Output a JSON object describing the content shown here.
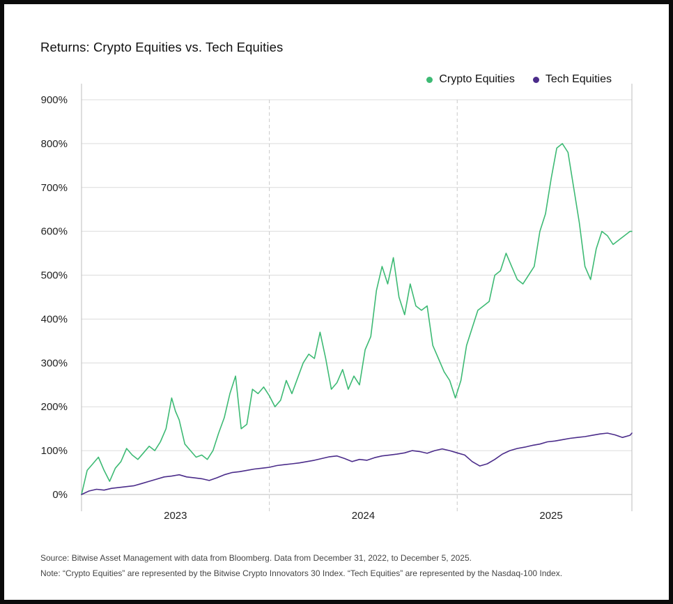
{
  "title": "Returns: Crypto Equities vs. Tech Equities",
  "legend": {
    "crypto_label": "Crypto Equities",
    "tech_label": "Tech Equities"
  },
  "colors": {
    "crypto": "#3dba74",
    "tech": "#4b2c8a",
    "grid": "#dcdcdc",
    "year_divider": "#c9c9c9"
  },
  "chart_data": {
    "type": "line",
    "title": "Returns: Crypto Equities vs. Tech Equities",
    "xlabel": "",
    "ylabel": "",
    "x_unit": "years since Dec 31, 2022",
    "xlim": [
      0,
      2.93
    ],
    "ylim": [
      0,
      900
    ],
    "y_ticks": [
      0,
      100,
      200,
      300,
      400,
      500,
      600,
      700,
      800,
      900
    ],
    "y_tick_labels": [
      "0%",
      "100%",
      "200%",
      "300%",
      "400%",
      "500%",
      "600%",
      "700%",
      "800%",
      "900%"
    ],
    "x_year_labels": [
      "2023",
      "2024",
      "2025"
    ],
    "x_year_label_positions": [
      0.5,
      1.5,
      2.5
    ],
    "year_dividers": [
      1,
      2
    ],
    "grid": true,
    "legend_position": "top-right",
    "series": [
      {
        "name": "Crypto Equities",
        "x": [
          0,
          0.03,
          0.06,
          0.09,
          0.12,
          0.15,
          0.18,
          0.21,
          0.24,
          0.27,
          0.3,
          0.33,
          0.36,
          0.39,
          0.42,
          0.45,
          0.48,
          0.5,
          0.52,
          0.55,
          0.58,
          0.61,
          0.64,
          0.67,
          0.7,
          0.73,
          0.76,
          0.79,
          0.82,
          0.85,
          0.88,
          0.91,
          0.94,
          0.97,
          1.0,
          1.03,
          1.06,
          1.09,
          1.12,
          1.15,
          1.18,
          1.21,
          1.24,
          1.27,
          1.3,
          1.33,
          1.36,
          1.39,
          1.42,
          1.45,
          1.48,
          1.51,
          1.54,
          1.57,
          1.6,
          1.63,
          1.66,
          1.69,
          1.72,
          1.75,
          1.78,
          1.81,
          1.84,
          1.87,
          1.9,
          1.93,
          1.96,
          1.99,
          2.02,
          2.05,
          2.08,
          2.11,
          2.14,
          2.17,
          2.2,
          2.23,
          2.26,
          2.29,
          2.32,
          2.35,
          2.38,
          2.41,
          2.44,
          2.47,
          2.5,
          2.53,
          2.56,
          2.59,
          2.62,
          2.65,
          2.68,
          2.71,
          2.74,
          2.77,
          2.8,
          2.83,
          2.86,
          2.89,
          2.92,
          2.93
        ],
        "values": [
          0,
          55,
          70,
          85,
          55,
          30,
          60,
          75,
          105,
          90,
          80,
          95,
          110,
          100,
          120,
          150,
          220,
          190,
          170,
          115,
          100,
          85,
          90,
          80,
          100,
          140,
          175,
          230,
          270,
          150,
          160,
          240,
          230,
          245,
          225,
          200,
          215,
          260,
          230,
          265,
          300,
          320,
          310,
          370,
          310,
          240,
          255,
          285,
          240,
          270,
          250,
          330,
          360,
          465,
          520,
          480,
          540,
          450,
          410,
          480,
          430,
          420,
          430,
          340,
          310,
          280,
          260,
          220,
          260,
          340,
          380,
          420,
          430,
          440,
          500,
          510,
          550,
          520,
          490,
          480,
          500,
          520,
          600,
          640,
          720,
          790,
          800,
          780,
          700,
          620,
          520,
          490,
          560,
          600,
          590,
          570,
          580,
          590,
          600,
          600
        ]
      },
      {
        "name": "Tech Equities",
        "x": [
          0,
          0.04,
          0.08,
          0.12,
          0.16,
          0.2,
          0.24,
          0.28,
          0.32,
          0.36,
          0.4,
          0.44,
          0.48,
          0.52,
          0.56,
          0.6,
          0.64,
          0.68,
          0.72,
          0.76,
          0.8,
          0.84,
          0.88,
          0.92,
          0.96,
          1.0,
          1.04,
          1.08,
          1.12,
          1.16,
          1.2,
          1.24,
          1.28,
          1.32,
          1.36,
          1.4,
          1.44,
          1.48,
          1.52,
          1.56,
          1.6,
          1.64,
          1.68,
          1.72,
          1.76,
          1.8,
          1.84,
          1.88,
          1.92,
          1.96,
          2.0,
          2.04,
          2.08,
          2.12,
          2.16,
          2.2,
          2.24,
          2.28,
          2.32,
          2.36,
          2.4,
          2.44,
          2.48,
          2.52,
          2.56,
          2.6,
          2.64,
          2.68,
          2.72,
          2.76,
          2.8,
          2.84,
          2.88,
          2.92,
          2.93
        ],
        "values": [
          0,
          8,
          12,
          10,
          14,
          16,
          18,
          20,
          25,
          30,
          35,
          40,
          42,
          45,
          40,
          38,
          36,
          32,
          38,
          45,
          50,
          52,
          55,
          58,
          60,
          62,
          66,
          68,
          70,
          72,
          75,
          78,
          82,
          86,
          88,
          82,
          75,
          80,
          78,
          84,
          88,
          90,
          92,
          95,
          100,
          98,
          94,
          100,
          104,
          100,
          95,
          90,
          75,
          65,
          70,
          80,
          92,
          100,
          105,
          108,
          112,
          115,
          120,
          122,
          125,
          128,
          130,
          132,
          135,
          138,
          140,
          136,
          130,
          135,
          140
        ]
      }
    ]
  },
  "notes": {
    "source": "Source: Bitwise Asset Management with data from Bloomberg. Data from December 31, 2022, to December 5, 2025.",
    "note": "Note: “Crypto Equities” are represented by the Bitwise Crypto Innovators 30 Index. “Tech Equities” are represented by the Nasdaq-100 Index."
  }
}
